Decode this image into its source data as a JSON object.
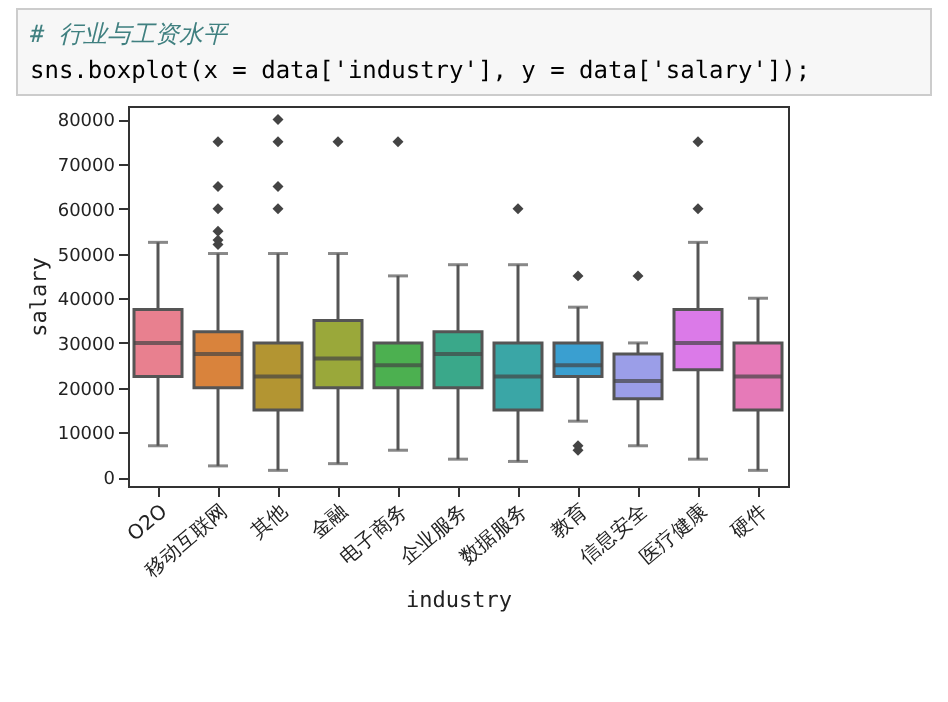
{
  "chart_data": {
    "type": "box",
    "xlabel": "industry",
    "ylabel": "salary",
    "annotations": [
      "# 行业与工资水平",
      "sns.boxplot(x = data['industry'], y = data['salary']);"
    ],
    "categories": [
      "O2O",
      "移动互联网",
      "其他",
      "金融",
      "电子商务",
      "企业服务",
      "数据服务",
      "教育",
      "信息安全",
      "医疗健康",
      "硬件"
    ],
    "colors": [
      "#e8808f",
      "#d9833c",
      "#b39532",
      "#9aa83a",
      "#4cb050",
      "#3aa88a",
      "#3aa6a6",
      "#3a9fd0",
      "#9b9ee8",
      "#db7ae8",
      "#e67ab8"
    ],
    "boxes": [
      {
        "low": 7000,
        "q1": 22500,
        "median": 30000,
        "q3": 37500,
        "high": 52500
      },
      {
        "low": 2500,
        "q1": 20000,
        "median": 27500,
        "q3": 32500,
        "high": 50000,
        "outliers": [
          52000,
          53000,
          55000,
          60000,
          65000,
          75000
        ]
      },
      {
        "low": 1500,
        "q1": 15000,
        "median": 22500,
        "q3": 30000,
        "high": 50000,
        "outliers": [
          60000,
          65000,
          75000,
          80000
        ]
      },
      {
        "low": 3000,
        "q1": 20000,
        "median": 26500,
        "q3": 35000,
        "high": 50000,
        "outliers": [
          75000
        ]
      },
      {
        "low": 6000,
        "q1": 20000,
        "median": 25000,
        "q3": 30000,
        "high": 45000,
        "outliers": [
          75000
        ]
      },
      {
        "low": 4000,
        "q1": 20000,
        "median": 27500,
        "q3": 32500,
        "high": 47500
      },
      {
        "low": 3500,
        "q1": 15000,
        "median": 22500,
        "q3": 30000,
        "high": 47500,
        "outliers": [
          60000
        ]
      },
      {
        "low": 12500,
        "q1": 22500,
        "median": 25000,
        "q3": 30000,
        "high": 38000,
        "outliers": [
          45000,
          6000,
          7000
        ]
      },
      {
        "low": 7000,
        "q1": 17500,
        "median": 21500,
        "q3": 27500,
        "high": 30000,
        "outliers": [
          45000
        ]
      },
      {
        "low": 4000,
        "q1": 24000,
        "median": 30000,
        "q3": 37500,
        "high": 52500,
        "outliers": [
          60000,
          75000
        ]
      },
      {
        "low": 1500,
        "q1": 15000,
        "median": 22500,
        "q3": 30000,
        "high": 40000
      }
    ],
    "ylim": [
      -2000,
      83000
    ],
    "yticks": [
      0,
      10000,
      20000,
      30000,
      40000,
      50000,
      60000,
      70000,
      80000
    ],
    "grid": false,
    "marker": "diamond"
  }
}
